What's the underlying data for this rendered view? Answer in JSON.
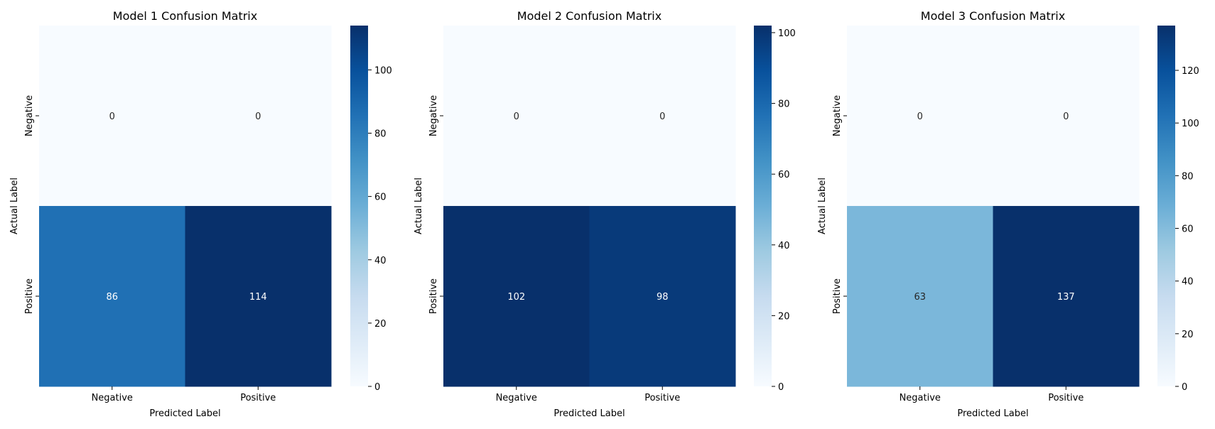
{
  "chart_data": [
    {
      "type": "heatmap",
      "title": "Model 1 Confusion Matrix",
      "xlabel": "Predicted Label",
      "ylabel": "Actual Label",
      "x_categories": [
        "Negative",
        "Positive"
      ],
      "y_categories": [
        "Negative",
        "Positive"
      ],
      "values": [
        [
          0,
          0
        ],
        [
          86,
          114
        ]
      ],
      "colorbar": {
        "min": 0,
        "max": 114,
        "ticks": [
          0,
          20,
          40,
          60,
          80,
          100
        ]
      }
    },
    {
      "type": "heatmap",
      "title": "Model 2 Confusion Matrix",
      "xlabel": "Predicted Label",
      "ylabel": "Actual Label",
      "x_categories": [
        "Negative",
        "Positive"
      ],
      "y_categories": [
        "Negative",
        "Positive"
      ],
      "values": [
        [
          0,
          0
        ],
        [
          102,
          98
        ]
      ],
      "colorbar": {
        "min": 0,
        "max": 102,
        "ticks": [
          0,
          20,
          40,
          60,
          80,
          100
        ]
      }
    },
    {
      "type": "heatmap",
      "title": "Model 3 Confusion Matrix",
      "xlabel": "Predicted Label",
      "ylabel": "Actual Label",
      "x_categories": [
        "Negative",
        "Positive"
      ],
      "y_categories": [
        "Negative",
        "Positive"
      ],
      "values": [
        [
          0,
          0
        ],
        [
          63,
          137
        ]
      ],
      "colorbar": {
        "min": 0,
        "max": 137,
        "ticks": [
          0,
          20,
          40,
          60,
          80,
          100,
          120
        ]
      }
    }
  ],
  "colormap": [
    "#f7fbff",
    "#deebf7",
    "#c6dbef",
    "#9ecae1",
    "#6baed6",
    "#4292c6",
    "#2171b5",
    "#08519c",
    "#08306b"
  ]
}
